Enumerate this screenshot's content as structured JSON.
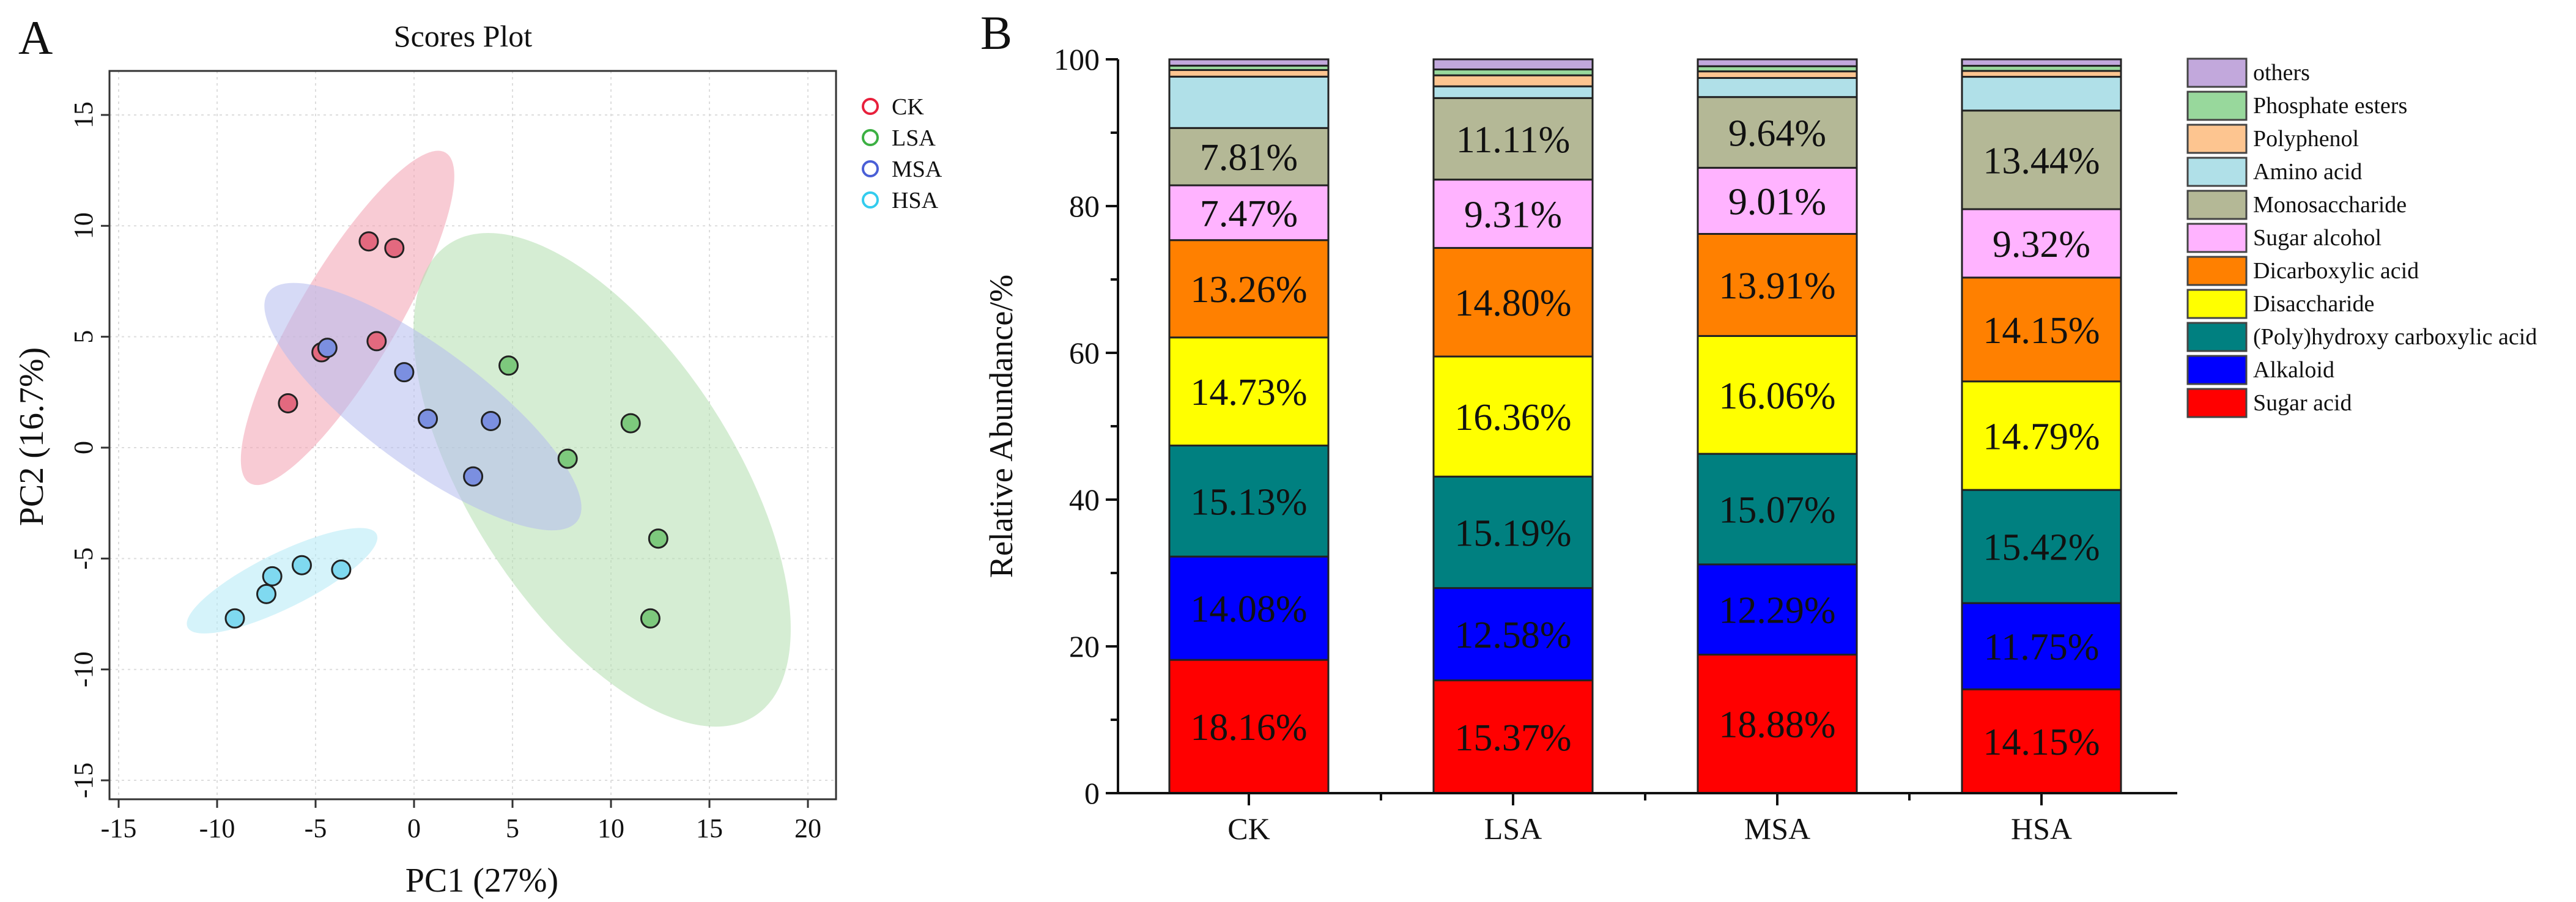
{
  "chart_data": [
    {
      "panel_label": "A",
      "type": "scatter",
      "title": "Scores Plot",
      "xlabel": "PC1 (27%)",
      "ylabel": "PC2 (16.7%)",
      "xlim": [
        -15.4,
        21.5
      ],
      "ylim": [
        -16.8,
        17.8
      ],
      "xticks": [
        -15,
        -10,
        -5,
        0,
        5,
        10,
        15,
        20
      ],
      "yticks": [
        -15,
        -10,
        -5,
        0,
        5,
        10,
        15
      ],
      "grid": true,
      "legend_position": "top-right",
      "series": [
        {
          "name": "CK",
          "stroke": "#e8203c",
          "fill": "#e3697f",
          "ellipse_fill": "#f2a0b0",
          "points": [
            [
              -2.3,
              9.3
            ],
            [
              -1.0,
              9.0
            ],
            [
              -1.9,
              4.8
            ],
            [
              -4.7,
              4.3
            ],
            [
              -6.4,
              2.0
            ]
          ],
          "ellipse": {
            "p1": [
              -8.35,
              -1.6
            ],
            "p2": [
              1.6,
              13.3
            ],
            "minor": 2.5
          }
        },
        {
          "name": "LSA",
          "stroke": "#3cb043",
          "fill": "#7dc97d",
          "ellipse_fill": "#b3deae",
          "points": [
            [
              4.8,
              3.7
            ],
            [
              11.0,
              1.1
            ],
            [
              7.8,
              -0.5
            ],
            [
              12.4,
              -4.1
            ],
            [
              12.0,
              -7.7
            ]
          ],
          "ellipse": {
            "p1": [
              1.8,
              9.2
            ],
            "p2": [
              17.3,
              -12.1
            ],
            "minor": 6.7
          }
        },
        {
          "name": "MSA",
          "stroke": "#4a5fd6",
          "fill": "#7b8fe0",
          "ellipse_fill": "#b4bcef",
          "points": [
            [
              -4.4,
              4.5
            ],
            [
              -0.5,
              3.4
            ],
            [
              0.7,
              1.3
            ],
            [
              3.9,
              1.2
            ],
            [
              3.0,
              -1.3
            ]
          ],
          "ellipse": {
            "p1": [
              -7.4,
              7.0
            ],
            "p2": [
              8.3,
              -3.3
            ],
            "minor": 3.0
          }
        },
        {
          "name": "HSA",
          "stroke": "#33ccee",
          "fill": "#7fd9f0",
          "ellipse_fill": "#b2eaf6",
          "points": [
            [
              -3.7,
              -5.5
            ],
            [
              -5.7,
              -5.3
            ],
            [
              -7.2,
              -5.8
            ],
            [
              -7.5,
              -6.6
            ],
            [
              -9.1,
              -7.7
            ]
          ],
          "ellipse": {
            "p1": [
              -11.5,
              -8.1
            ],
            "p2": [
              -1.9,
              -3.9
            ],
            "minor": 1.4
          }
        }
      ]
    },
    {
      "panel_label": "B",
      "type": "bar",
      "stacked": true,
      "ylabel": "Relative Abundance/%",
      "xlabel": "",
      "ylim": [
        0,
        100
      ],
      "yticks": [
        0,
        20,
        40,
        60,
        80,
        100
      ],
      "categories": [
        "CK",
        "LSA",
        "MSA",
        "HSA"
      ],
      "legend_position": "right",
      "series": [
        {
          "name": "Sugar acid",
          "color": "#ff0000",
          "values": [
            18.16,
            15.37,
            18.88,
            14.15
          ],
          "labeled": true
        },
        {
          "name": "Alkaloid",
          "color": "#0000ff",
          "values": [
            14.08,
            12.58,
            12.29,
            11.75
          ],
          "labeled": true
        },
        {
          "name": "(Poly)hydroxy carboxylic acid",
          "color": "#008080",
          "values": [
            15.13,
            15.19,
            15.07,
            15.42
          ],
          "labeled": true
        },
        {
          "name": "Disaccharide",
          "color": "#ffff00",
          "values": [
            14.73,
            16.36,
            16.06,
            14.79
          ],
          "labeled": true
        },
        {
          "name": "Dicarboxylic acid",
          "color": "#ff8000",
          "values": [
            13.26,
            14.8,
            13.91,
            14.15
          ],
          "labeled": true
        },
        {
          "name": "Sugar alcohol",
          "color": "#ffb3ff",
          "values": [
            7.47,
            9.31,
            9.01,
            9.32
          ],
          "labeled": true
        },
        {
          "name": "Monosaccharide",
          "color": "#b4b896",
          "values": [
            7.81,
            11.11,
            9.64,
            13.44
          ],
          "labeled": true
        },
        {
          "name": "Amino acid",
          "color": "#b0e0e8",
          "values": [
            7.0,
            1.6,
            2.6,
            4.6
          ],
          "labeled": false
        },
        {
          "name": "Polyphenol",
          "color": "#fdc590",
          "values": [
            0.9,
            1.5,
            0.9,
            0.8
          ],
          "labeled": false
        },
        {
          "name": "Phosphate esters",
          "color": "#98d89c",
          "values": [
            0.6,
            0.8,
            0.7,
            0.7
          ],
          "labeled": false
        },
        {
          "name": "others",
          "color": "#c2a8dc",
          "values": [
            0.86,
            1.38,
            0.94,
            0.88
          ],
          "labeled": false
        }
      ]
    }
  ]
}
